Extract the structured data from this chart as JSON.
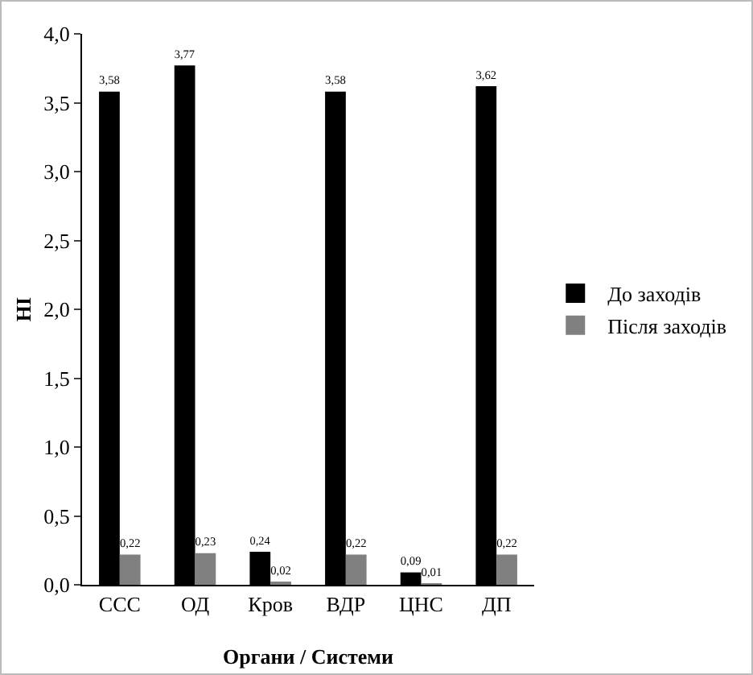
{
  "chart_data": {
    "type": "bar",
    "ylabel": "HI",
    "xlabel": "Органи / Системи",
    "categories": [
      "ССС",
      "ОД",
      "Кров",
      "ВДР",
      "ЦНС",
      "ДП"
    ],
    "series": [
      {
        "name": "До заходів",
        "color": "#000000",
        "values": [
          3.58,
          3.77,
          0.24,
          3.58,
          0.09,
          3.62
        ],
        "value_labels": [
          "3,58",
          "3,77",
          "0,24",
          "3,58",
          "0,09",
          "3,62"
        ]
      },
      {
        "name": "Після заходів",
        "color": "#808080",
        "values": [
          0.22,
          0.23,
          0.02,
          0.22,
          0.01,
          0.22
        ],
        "value_labels": [
          "0,22",
          "0,23",
          "0,02",
          "0,22",
          "0,01",
          "0,22"
        ]
      }
    ],
    "ylim": [
      0,
      4
    ],
    "yticks": [
      {
        "value": 0,
        "label": "0,0"
      },
      {
        "value": 0.5,
        "label": "0,5"
      },
      {
        "value": 1,
        "label": "1,0"
      },
      {
        "value": 1.5,
        "label": "1,5"
      },
      {
        "value": 2,
        "label": "2,0"
      },
      {
        "value": 2.5,
        "label": "2,5"
      },
      {
        "value": 3,
        "label": "3,0"
      },
      {
        "value": 3.5,
        "label": "3,5"
      },
      {
        "value": 4,
        "label": "4,0"
      }
    ],
    "grid": false,
    "legend": "right"
  }
}
